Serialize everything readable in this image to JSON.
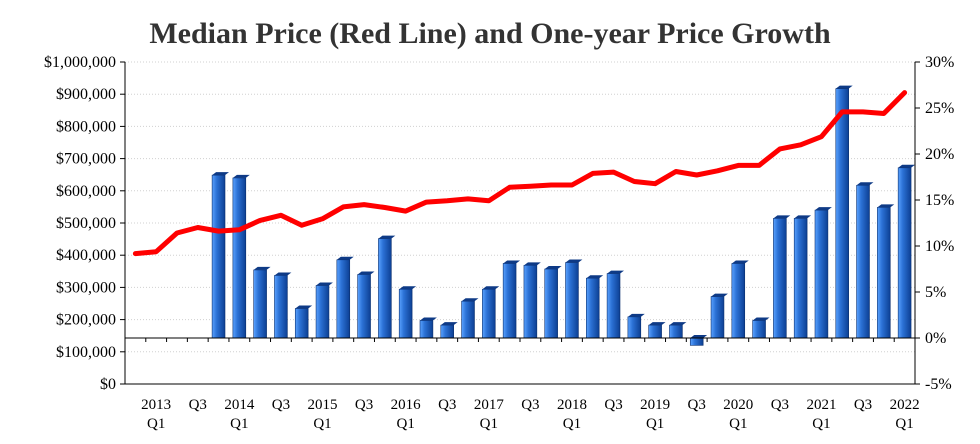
{
  "chart_data": {
    "type": "bar+line",
    "title": "Median Price (Red Line) and One-year Price Growth",
    "left_axis": {
      "series": "Median Price",
      "ylim": [
        0,
        1000000
      ],
      "tick_values": [
        0,
        100000,
        200000,
        300000,
        400000,
        500000,
        600000,
        700000,
        800000,
        900000,
        1000000
      ],
      "tick_labels": [
        "$0",
        "$100,000",
        "$200,000",
        "$300,000",
        "$400,000",
        "$500,000",
        "$600,000",
        "$700,000",
        "$800,000",
        "$900,000",
        "$1,000,000"
      ]
    },
    "right_axis": {
      "series": "One-year Price Growth",
      "ylim": [
        -5,
        30
      ],
      "tick_values": [
        -5,
        0,
        5,
        10,
        15,
        20,
        25,
        30
      ],
      "tick_labels": [
        "-5%",
        "0%",
        "5%",
        "10%",
        "15%",
        "20%",
        "25%",
        "30%"
      ]
    },
    "x_tick_labels": [
      {
        "index": 1,
        "top": "2013",
        "bottom": "Q1"
      },
      {
        "index": 3,
        "top": "Q3",
        "bottom": ""
      },
      {
        "index": 5,
        "top": "2014",
        "bottom": "Q1"
      },
      {
        "index": 7,
        "top": "Q3",
        "bottom": ""
      },
      {
        "index": 9,
        "top": "2015",
        "bottom": "Q1"
      },
      {
        "index": 11,
        "top": "Q3",
        "bottom": ""
      },
      {
        "index": 13,
        "top": "2016",
        "bottom": "Q1"
      },
      {
        "index": 15,
        "top": "Q3",
        "bottom": ""
      },
      {
        "index": 17,
        "top": "2017",
        "bottom": "Q1"
      },
      {
        "index": 19,
        "top": "Q3",
        "bottom": ""
      },
      {
        "index": 21,
        "top": "2018",
        "bottom": "Q1"
      },
      {
        "index": 23,
        "top": "Q3",
        "bottom": ""
      },
      {
        "index": 25,
        "top": "2019",
        "bottom": "Q1"
      },
      {
        "index": 27,
        "top": "Q3",
        "bottom": ""
      },
      {
        "index": 29,
        "top": "2020",
        "bottom": "Q1"
      },
      {
        "index": 31,
        "top": "Q3",
        "bottom": ""
      },
      {
        "index": 33,
        "top": "2021",
        "bottom": "Q1"
      },
      {
        "index": 35,
        "top": "Q3",
        "bottom": ""
      },
      {
        "index": 37,
        "top": "2022",
        "bottom": "Q1"
      }
    ],
    "series": [
      {
        "name": "One-year Price Growth",
        "type": "bar",
        "axis": "right",
        "color": "#1f5fbf",
        "values": [
          null,
          null,
          null,
          null,
          17.7,
          17.4,
          7.4,
          6.8,
          3.2,
          5.7,
          8.5,
          6.9,
          10.8,
          5.3,
          1.9,
          1.4,
          4.0,
          5.3,
          8.1,
          7.9,
          7.5,
          8.2,
          6.5,
          7.0,
          2.3,
          1.4,
          1.4,
          -0.8,
          4.5,
          8.1,
          1.9,
          13.0,
          13.0,
          13.9,
          27.1,
          16.6,
          14.2,
          18.5
        ]
      },
      {
        "name": "Median Price",
        "type": "line",
        "axis": "left",
        "color": "#ff0000",
        "values": [
          405000,
          411000,
          469000,
          486000,
          475000,
          479000,
          508000,
          524000,
          493000,
          513000,
          550000,
          557000,
          548000,
          537000,
          565000,
          569000,
          575000,
          569000,
          611000,
          614000,
          618000,
          618000,
          654000,
          658000,
          629000,
          622000,
          660000,
          649000,
          662000,
          679000,
          679000,
          730000,
          743000,
          768000,
          845000,
          845000,
          840000,
          905000
        ]
      }
    ]
  }
}
